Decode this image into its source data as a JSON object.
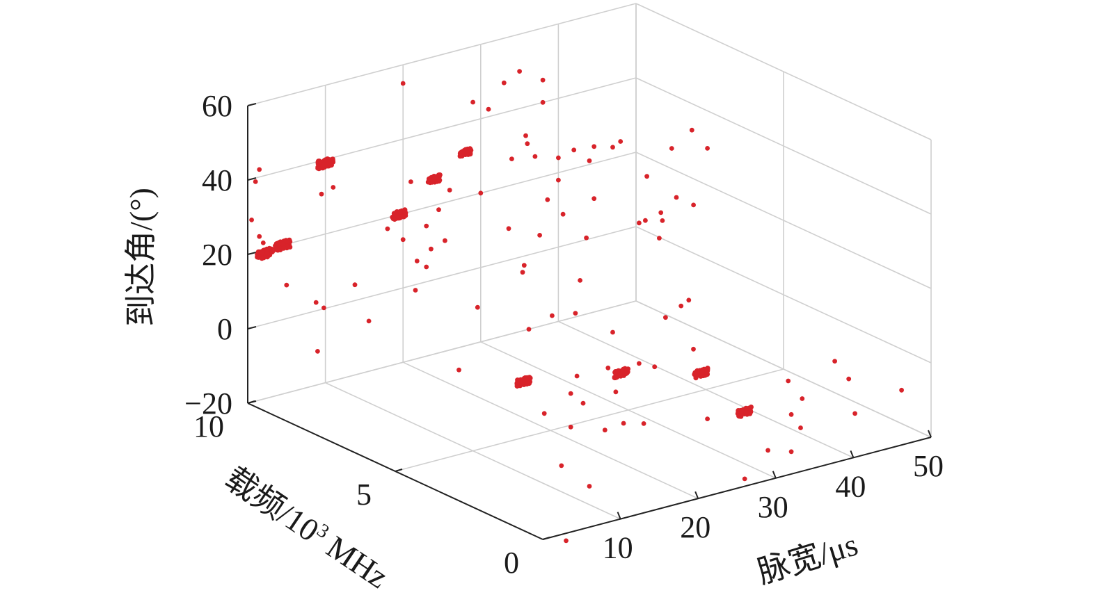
{
  "chart_data": {
    "type": "scatter3d",
    "axes": {
      "x": {
        "label": "脉宽/μs",
        "ticks": [
          10,
          20,
          30,
          40,
          50
        ],
        "range": [
          0,
          50
        ]
      },
      "y": {
        "label_parts": [
          "载频/10",
          "3",
          " MHz"
        ],
        "ticks": [
          0,
          5,
          10
        ],
        "range": [
          0,
          10
        ]
      },
      "z": {
        "label": "到达角/(°)",
        "ticks": [
          "−20",
          "0",
          "20",
          "40",
          "60"
        ],
        "tick_values": [
          -20,
          0,
          20,
          40,
          60
        ],
        "range": [
          -20,
          60
        ]
      }
    },
    "grid": true,
    "marker_color": "#d8232a",
    "clusters": [
      {
        "x": 2.2,
        "y": 10.0,
        "z": 19.0,
        "n": 70,
        "spread": 0.45
      },
      {
        "x": 4.5,
        "y": 10.0,
        "z": 20.0,
        "n": 70,
        "spread": 0.45
      },
      {
        "x": 10.0,
        "y": 10.0,
        "z": 39.0,
        "n": 60,
        "spread": 0.45
      },
      {
        "x": 19.5,
        "y": 10.0,
        "z": 20.0,
        "n": 55,
        "spread": 0.4
      },
      {
        "x": 24.0,
        "y": 10.0,
        "z": 27.0,
        "n": 45,
        "spread": 0.35
      },
      {
        "x": 28.0,
        "y": 10.0,
        "z": 32.0,
        "n": 40,
        "spread": 0.35
      },
      {
        "x": 12.0,
        "y": 3.8,
        "z": 2.0,
        "n": 55,
        "spread": 0.4
      },
      {
        "x": 21.5,
        "y": 3.0,
        "z": 2.0,
        "n": 55,
        "spread": 0.4
      },
      {
        "x": 28.0,
        "y": 2.0,
        "z": 2.0,
        "n": 50,
        "spread": 0.4
      },
      {
        "x": 26.0,
        "y": 0.0,
        "z": 0.0,
        "n": 50,
        "spread": 0.4
      }
    ],
    "points": [
      [
        0.5,
        10,
        29
      ],
      [
        1,
        10,
        39
      ],
      [
        1.5,
        10,
        42
      ],
      [
        1.5,
        10,
        24
      ],
      [
        2,
        10,
        22
      ],
      [
        9.5,
        10,
        31
      ],
      [
        11,
        10,
        32
      ],
      [
        20,
        10,
        55
      ],
      [
        21,
        10,
        28
      ],
      [
        20,
        10,
        13
      ],
      [
        23,
        10,
        15
      ],
      [
        26,
        10,
        23
      ],
      [
        29,
        10,
        45
      ],
      [
        31,
        10,
        42
      ],
      [
        33,
        10,
        48
      ],
      [
        35,
        10,
        50
      ],
      [
        38,
        10,
        46
      ],
      [
        38,
        10,
        40
      ],
      [
        30,
        10,
        20
      ],
      [
        34,
        10,
        27
      ],
      [
        36,
        10,
        30
      ],
      [
        37,
        10,
        26
      ],
      [
        40,
        10,
        24
      ],
      [
        40,
        10,
        18
      ],
      [
        42,
        10,
        25
      ],
      [
        44,
        10,
        21
      ],
      [
        47,
        10,
        23
      ],
      [
        48,
        10,
        24
      ],
      [
        5,
        9,
        8
      ],
      [
        8,
        8,
        5
      ],
      [
        10,
        9,
        10
      ],
      [
        14,
        8,
        10
      ],
      [
        16,
        8,
        20
      ],
      [
        18,
        9,
        12
      ],
      [
        24,
        7,
        13
      ],
      [
        26,
        8,
        20
      ],
      [
        28,
        8,
        9
      ],
      [
        30,
        8,
        16
      ],
      [
        31,
        8,
        25
      ],
      [
        33,
        8,
        20
      ],
      [
        36,
        8,
        12
      ],
      [
        37,
        8,
        22
      ],
      [
        37,
        8,
        36
      ],
      [
        39,
        7,
        18
      ],
      [
        40,
        7,
        30
      ],
      [
        42,
        7,
        17
      ],
      [
        46,
        7,
        19
      ],
      [
        47,
        8,
        30
      ],
      [
        42,
        6,
        45
      ],
      [
        40,
        6,
        28
      ],
      [
        38,
        6,
        25
      ],
      [
        36,
        6,
        24
      ],
      [
        44,
        6,
        39
      ],
      [
        34,
        5,
        24
      ],
      [
        33,
        4,
        10
      ],
      [
        31,
        4,
        8
      ],
      [
        34,
        4,
        11
      ],
      [
        27,
        2,
        9
      ],
      [
        22,
        2,
        7
      ],
      [
        20,
        2,
        9
      ],
      [
        16,
        2,
        10
      ],
      [
        12,
        2,
        10
      ],
      [
        9,
        1,
        8
      ],
      [
        4,
        1,
        8
      ],
      [
        8,
        0,
        5
      ],
      [
        15,
        3,
        0
      ],
      [
        17,
        2,
        3
      ],
      [
        13,
        0,
        4
      ],
      [
        21,
        6,
        3
      ],
      [
        24,
        6,
        5
      ],
      [
        27,
        6,
        4
      ],
      [
        28,
        5,
        2
      ],
      [
        26,
        0,
        -18
      ],
      [
        32,
        0,
        -14
      ],
      [
        37,
        1,
        -14
      ],
      [
        41,
        2,
        -12
      ],
      [
        43,
        3,
        -12
      ],
      [
        47,
        2,
        -10
      ],
      [
        49,
        3,
        -10
      ],
      [
        50,
        1,
        -11
      ],
      [
        44,
        1,
        -14
      ],
      [
        29,
        0,
        -12
      ],
      [
        32,
        0,
        -4
      ],
      [
        25,
        1,
        -5
      ],
      [
        18,
        2,
        -6
      ],
      [
        10,
        2,
        -13
      ],
      [
        3,
        0,
        -22
      ],
      [
        6,
        0,
        -9
      ],
      [
        15,
        3,
        -9
      ],
      [
        12,
        6,
        -3
      ],
      [
        22,
        8,
        1
      ],
      [
        18,
        10,
        17
      ],
      [
        23,
        10,
        4
      ],
      [
        9,
        10,
        -11
      ],
      [
        5,
        10,
        9
      ],
      [
        6,
        9,
        6
      ],
      [
        20,
        4,
        24
      ],
      [
        32,
        9,
        38
      ],
      [
        14,
        7,
        27
      ],
      [
        17,
        8,
        30
      ]
    ]
  }
}
